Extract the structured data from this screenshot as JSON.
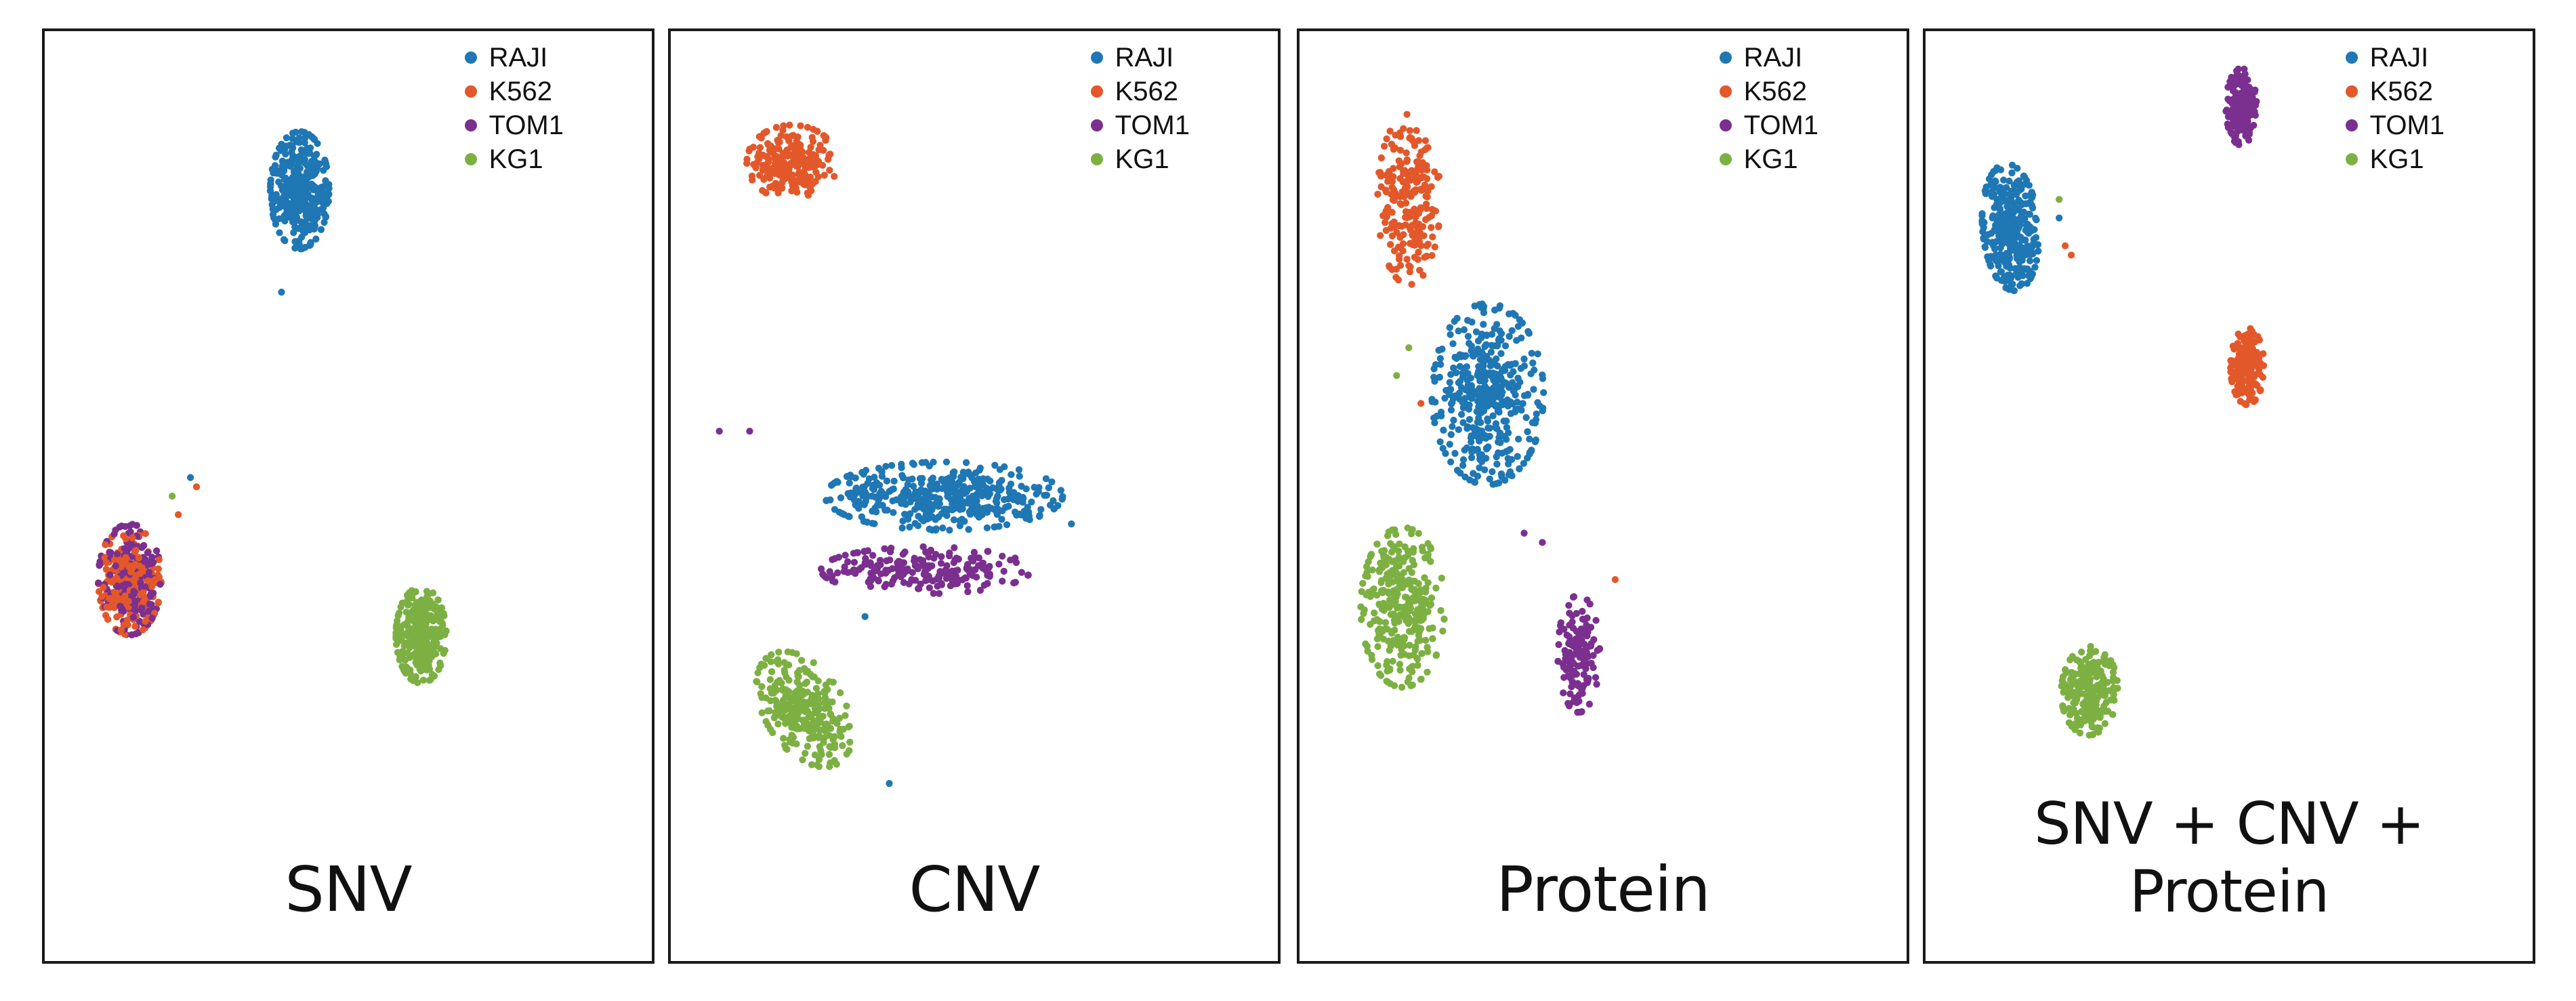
{
  "colors": {
    "RAJI": "#1f77b4",
    "K562": "#e2582a",
    "TOM1": "#7b2f8f",
    "KG1": "#7db043"
  },
  "chart_data": [
    {
      "type": "scatter",
      "title": "SNV",
      "xlabel": "",
      "ylabel": "",
      "legend_position": "top-right",
      "legend": [
        "RAJI",
        "K562",
        "TOM1",
        "KG1"
      ],
      "xlim": [
        0,
        100
      ],
      "ylim": [
        0,
        100
      ],
      "clusters": [
        {
          "name": "RAJI",
          "cx": 42,
          "cy": 83,
          "sx": 4.2,
          "sy": 5.5,
          "n": 340,
          "rot": 0
        },
        {
          "name": "K562",
          "cx": 14,
          "cy": 41,
          "sx": 4.5,
          "sy": 5.2,
          "n": 200,
          "rot": 0
        },
        {
          "name": "TOM1",
          "cx": 14,
          "cy": 41,
          "sx": 4.5,
          "sy": 5.2,
          "n": 200,
          "rot": 0
        },
        {
          "name": "KG1",
          "cx": 62,
          "cy": 35,
          "sx": 3.6,
          "sy": 4.5,
          "n": 320,
          "rot": 0
        }
      ],
      "outliers": [
        {
          "name": "K562",
          "x": 25,
          "y": 51
        },
        {
          "name": "RAJI",
          "x": 24,
          "y": 52
        },
        {
          "name": "KG1",
          "x": 21,
          "y": 50
        },
        {
          "name": "K562",
          "x": 22,
          "y": 48
        },
        {
          "name": "RAJI",
          "x": 39,
          "y": 72
        }
      ]
    },
    {
      "type": "scatter",
      "title": "CNV",
      "xlabel": "",
      "ylabel": "",
      "legend_position": "top-right",
      "legend": [
        "RAJI",
        "K562",
        "TOM1",
        "KG1"
      ],
      "xlim": [
        0,
        100
      ],
      "ylim": [
        0,
        100
      ],
      "clusters": [
        {
          "name": "K562",
          "cx": 20,
          "cy": 86,
          "sx": 6.5,
          "sy": 3.5,
          "n": 220,
          "rot": 0
        },
        {
          "name": "RAJI",
          "cx": 45,
          "cy": 50,
          "sx": 17,
          "sy": 3.2,
          "n": 420,
          "rot": 0
        },
        {
          "name": "TOM1",
          "cx": 42,
          "cy": 42,
          "sx": 15,
          "sy": 2.2,
          "n": 220,
          "rot": 0
        },
        {
          "name": "KG1",
          "cx": 22,
          "cy": 27,
          "sx": 7.5,
          "sy": 4.5,
          "n": 300,
          "rot": -30
        }
      ],
      "outliers": [
        {
          "name": "TOM1",
          "x": 8,
          "y": 57
        },
        {
          "name": "TOM1",
          "x": 13,
          "y": 57
        },
        {
          "name": "RAJI",
          "x": 36,
          "y": 19
        },
        {
          "name": "RAJI",
          "x": 32,
          "y": 37
        },
        {
          "name": "RAJI",
          "x": 66,
          "y": 47
        }
      ]
    },
    {
      "type": "scatter",
      "title": "Protein",
      "xlabel": "",
      "ylabel": "",
      "legend_position": "top-right",
      "legend": [
        "RAJI",
        "K562",
        "TOM1",
        "KG1"
      ],
      "xlim": [
        0,
        100
      ],
      "ylim": [
        0,
        100
      ],
      "clusters": [
        {
          "name": "K562",
          "cx": 18,
          "cy": 82,
          "sx": 4.5,
          "sy": 8,
          "n": 220,
          "rot": 0
        },
        {
          "name": "RAJI",
          "cx": 31,
          "cy": 61,
          "sx": 8,
          "sy": 8.5,
          "n": 420,
          "rot": 0
        },
        {
          "name": "KG1",
          "cx": 17,
          "cy": 38,
          "sx": 6,
          "sy": 7.5,
          "n": 320,
          "rot": 0
        },
        {
          "name": "TOM1",
          "cx": 46,
          "cy": 33,
          "sx": 3,
          "sy": 5.5,
          "n": 150,
          "rot": 0
        }
      ],
      "outliers": [
        {
          "name": "TOM1",
          "x": 37,
          "y": 46
        },
        {
          "name": "TOM1",
          "x": 40,
          "y": 45
        },
        {
          "name": "K562",
          "x": 20,
          "y": 60
        },
        {
          "name": "K562",
          "x": 52,
          "y": 41
        },
        {
          "name": "KG1",
          "x": 16,
          "y": 63
        },
        {
          "name": "KG1",
          "x": 18,
          "y": 66
        }
      ]
    },
    {
      "type": "scatter",
      "title": "SNV + CNV + Protein",
      "xlabel": "",
      "ylabel": "",
      "legend_position": "top-right",
      "legend": [
        "RAJI",
        "K562",
        "TOM1",
        "KG1"
      ],
      "xlim": [
        0,
        100
      ],
      "ylim": [
        0,
        100
      ],
      "clusters": [
        {
          "name": "RAJI",
          "cx": 14,
          "cy": 79,
          "sx": 4,
          "sy": 6,
          "n": 340,
          "rot": 10
        },
        {
          "name": "TOM1",
          "cx": 52,
          "cy": 92,
          "sx": 2.2,
          "sy": 3.6,
          "n": 180,
          "rot": 0
        },
        {
          "name": "K562",
          "cx": 53,
          "cy": 64,
          "sx": 2.4,
          "sy": 3.6,
          "n": 180,
          "rot": 0
        },
        {
          "name": "KG1",
          "cx": 27,
          "cy": 29,
          "sx": 4,
          "sy": 4.2,
          "n": 220,
          "rot": -25
        }
      ],
      "outliers": [
        {
          "name": "RAJI",
          "x": 22,
          "y": 80
        },
        {
          "name": "K562",
          "x": 24,
          "y": 76
        },
        {
          "name": "KG1",
          "x": 22,
          "y": 82
        },
        {
          "name": "K562",
          "x": 23,
          "y": 77
        }
      ]
    }
  ]
}
